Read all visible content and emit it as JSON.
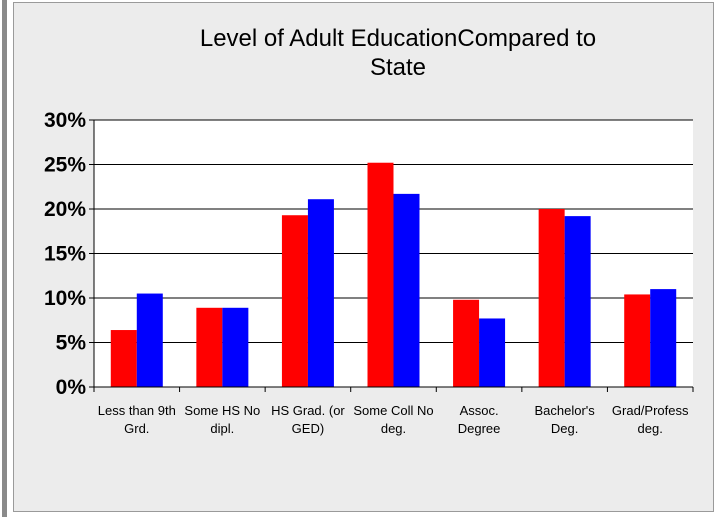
{
  "chart_data": {
    "type": "bar",
    "title": "Level of Adult EducationCompared to State",
    "title_lines": [
      "Level of Adult EducationCompared to",
      "State"
    ],
    "categories": [
      "Less than 9th Grd.",
      "Some HS No dipl.",
      "HS Grad. (or GED)",
      "Some Coll No deg.",
      "Assoc. Degree",
      "Bachelor's Deg.",
      "Grad/Profess deg."
    ],
    "category_lines": [
      [
        "Less than 9th",
        "Grd."
      ],
      [
        "Some HS No",
        "dipl."
      ],
      [
        "HS Grad. (or",
        "GED)"
      ],
      [
        "Some Coll No",
        "deg."
      ],
      [
        "Assoc.",
        "Degree"
      ],
      [
        "Bachelor's",
        "Deg."
      ],
      [
        "Grad/Profess",
        "deg."
      ]
    ],
    "series": [
      {
        "values": [
          6.4,
          8.9,
          19.3,
          25.2,
          9.8,
          20.0,
          10.4
        ],
        "color": "#ff0000"
      },
      {
        "values": [
          10.5,
          8.9,
          21.1,
          21.7,
          7.7,
          19.2,
          11.0
        ],
        "color": "#0000ff"
      }
    ],
    "ylim": [
      0,
      30
    ],
    "yticks": [
      0,
      5,
      10,
      15,
      20,
      25,
      30
    ],
    "ytick_labels": [
      "0%",
      "5%",
      "10%",
      "15%",
      "20%",
      "25%",
      "30%"
    ],
    "xlabel": "",
    "ylabel": "",
    "grid": true,
    "legend": "none",
    "plot_background": "#ffffff",
    "chart_background": "#ececec",
    "gridline_color": "#000000"
  }
}
